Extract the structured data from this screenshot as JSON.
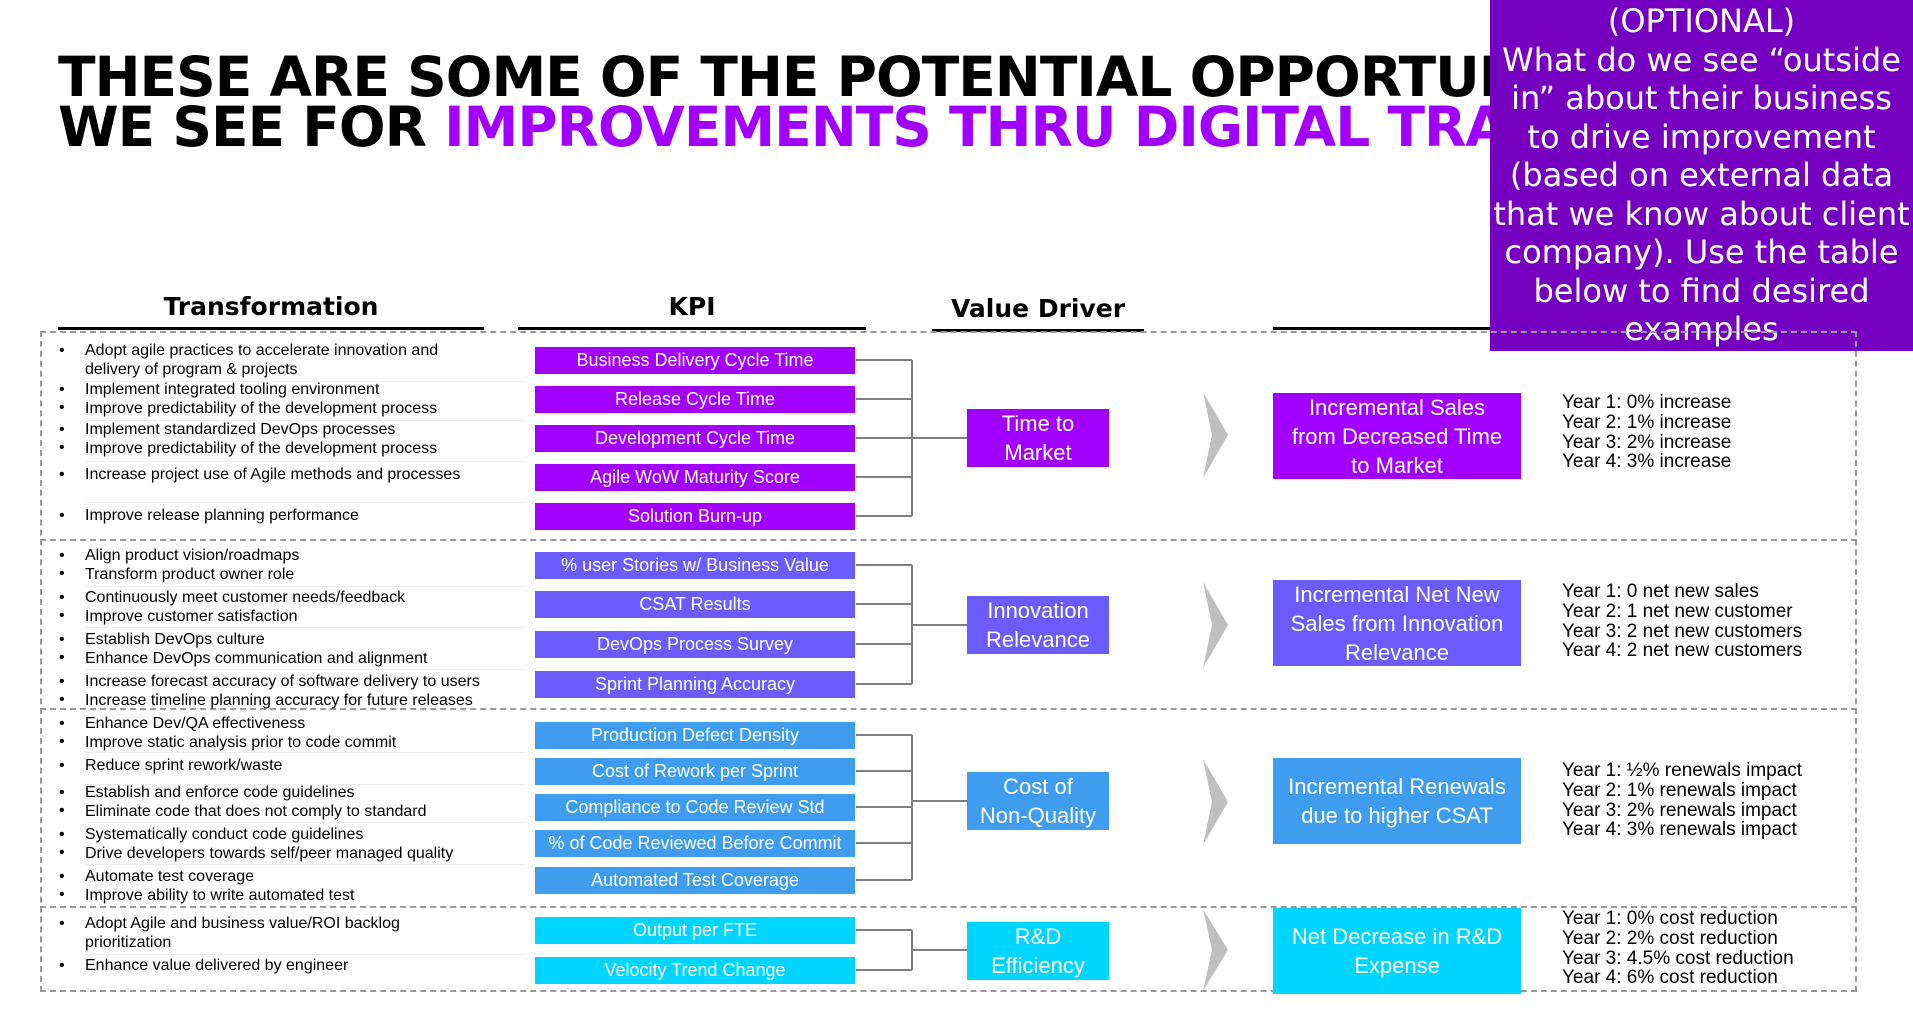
{
  "title": {
    "line1": "THESE ARE SOME OF THE POTENTIAL OPPORTUNITIES",
    "line2_prefix": "WE SEE FOR ",
    "line2_highlight": "IMPROVEMENTS THRU DIGITAL TRANSFORMATION"
  },
  "callout": [
    "(OPTIONAL)",
    "What do we see “outside",
    "in” about their business",
    "to drive improvement",
    "(based on external data",
    "that we know about client",
    "company). Use the table",
    "below to find desired",
    "examples"
  ],
  "headers": {
    "transformation": "Transformation",
    "kpi": "KPI",
    "value_driver": "Value Driver"
  },
  "colors": {
    "purple": "#a100ff",
    "violet": "#6a5cff",
    "blue": "#3f9cef",
    "cyan": "#00d5ff",
    "callout": "#7500c0"
  },
  "sections": [
    {
      "bullets": [
        [
          "Adopt agile practices to accelerate innovation and",
          "delivery of program & projects"
        ],
        [
          "Implement integrated tooling environment",
          "Improve predictability of the development process"
        ],
        [
          "Implement standardized DevOps processes",
          "Improve predictability of the development process"
        ],
        [
          "Increase project use of Agile methods and processes"
        ],
        [
          "Improve release planning performance"
        ]
      ],
      "kpis": [
        "Business Delivery Cycle Time",
        "Release Cycle Time",
        "Development Cycle Time",
        "Agile WoW Maturity Score",
        "Solution Burn-up"
      ],
      "value_driver": [
        "Time to",
        "Market"
      ],
      "outcome": [
        "Incremental Sales",
        "from Decreased Time",
        "to Market"
      ],
      "years": [
        "Year 1: 0% increase",
        "Year 2: 1% increase",
        "Year 3: 2% increase",
        "Year 4: 3% increase"
      ]
    },
    {
      "bullets": [
        [
          "Align product vision/roadmaps",
          "Transform product owner role"
        ],
        [
          "Continuously meet customer needs/feedback",
          "Improve customer satisfaction"
        ],
        [
          "Establish DevOps culture",
          "Enhance DevOps communication and alignment"
        ],
        [
          "Increase forecast accuracy of software delivery to users",
          "Increase timeline planning accuracy for future releases"
        ]
      ],
      "kpis": [
        "% user Stories w/ Business Value",
        "CSAT Results",
        "DevOps Process Survey",
        "Sprint Planning Accuracy"
      ],
      "value_driver": [
        "Innovation",
        "Relevance"
      ],
      "outcome": [
        "Incremental Net New",
        "Sales from Innovation",
        "Relevance"
      ],
      "years": [
        "Year 1: 0 net new sales",
        "Year 2: 1 net new customer",
        "Year 3: 2 net new customers",
        "Year 4: 2 net new customers"
      ]
    },
    {
      "bullets": [
        [
          "Enhance Dev/QA effectiveness",
          "Improve static analysis prior to code commit"
        ],
        [
          "Reduce sprint rework/waste"
        ],
        [
          "Establish and enforce code guidelines",
          "Eliminate code that does not comply to standard"
        ],
        [
          "Systematically conduct code guidelines",
          "Drive developers towards self/peer managed quality"
        ],
        [
          "Automate test coverage",
          "Improve ability to write automated test"
        ]
      ],
      "kpis": [
        "Production Defect Density",
        "Cost of Rework per Sprint",
        "Compliance to Code Review Std",
        "% of Code Reviewed Before Commit",
        "Automated Test Coverage"
      ],
      "value_driver": [
        "Cost of",
        "Non-Quality"
      ],
      "outcome": [
        "Incremental Renewals",
        "due to higher CSAT"
      ],
      "years": [
        "Year 1: ½% renewals impact",
        "Year 2: 1% renewals impact",
        "Year 3: 2% renewals impact",
        "Year 4: 3% renewals impact"
      ]
    },
    {
      "bullets": [
        [
          "Adopt Agile and business value/ROI backlog",
          "prioritization"
        ],
        [
          "Enhance value delivered by engineer"
        ]
      ],
      "kpis": [
        "Output per FTE",
        "Velocity Trend Change"
      ],
      "value_driver": [
        "R&D",
        "Efficiency"
      ],
      "outcome": [
        "Net Decrease in R&D",
        "Expense"
      ],
      "years": [
        "Year 1: 0% cost reduction",
        "Year 2: 2% cost reduction",
        "Year 3: 4.5% cost reduction",
        "Year 4: 6% cost reduction"
      ]
    }
  ]
}
